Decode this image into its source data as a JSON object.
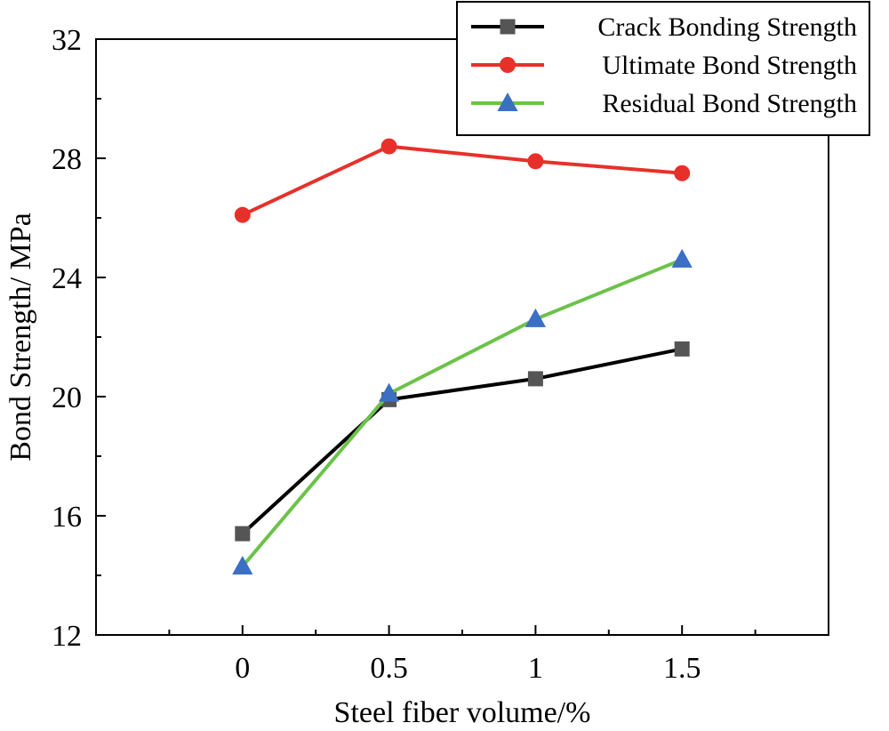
{
  "chart_data": {
    "type": "line",
    "title": "",
    "xlabel": "Steel fiber volume/%",
    "ylabel": "Bond Strength/ MPa",
    "x": [
      0,
      0.5,
      1,
      1.5
    ],
    "x_tick_labels": [
      "0",
      "0.5",
      "1",
      "1.5"
    ],
    "xlim": [
      -0.5,
      2.0
    ],
    "ylim": [
      12,
      32
    ],
    "y_ticks": [
      12,
      16,
      20,
      24,
      28,
      32
    ],
    "y_tick_labels": [
      "12",
      "16",
      "20",
      "24",
      "28",
      "32"
    ],
    "grid": false,
    "legend_position": "top-right",
    "series": [
      {
        "name": "Crack Bonding Strength",
        "values": [
          15.4,
          19.9,
          20.6,
          21.6
        ],
        "color": "#000000",
        "marker_color": "#555555",
        "marker": "square"
      },
      {
        "name": "Ultimate Bond Strength",
        "values": [
          26.1,
          28.4,
          27.9,
          27.5
        ],
        "color": "#e8302a",
        "marker_color": "#e8302a",
        "marker": "circle"
      },
      {
        "name": "Residual Bond Strength",
        "values": [
          14.3,
          20.1,
          22.6,
          24.6
        ],
        "color": "#6cc24a",
        "marker_color": "#3a6fc4",
        "marker": "triangle"
      }
    ]
  }
}
